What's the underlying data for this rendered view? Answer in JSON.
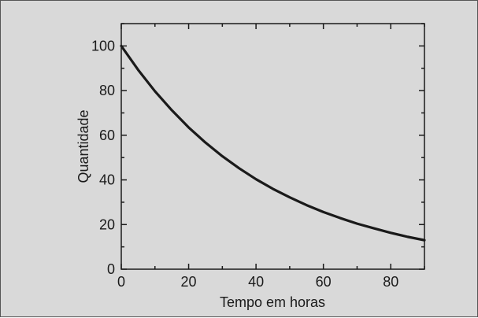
{
  "chart_data": {
    "type": "line",
    "title": "",
    "xlabel": "Tempo em horas",
    "ylabel": "Quantidade",
    "xlim": [
      0,
      90
    ],
    "ylim": [
      0,
      110
    ],
    "x_ticks": [
      0,
      20,
      40,
      60,
      80
    ],
    "y_ticks": [
      0,
      20,
      40,
      60,
      80,
      100
    ],
    "x_minor_step": 10,
    "y_minor_step": 10,
    "grid": false,
    "series": [
      {
        "x": [
          0,
          5,
          10,
          15,
          20,
          25,
          30,
          35,
          40,
          45,
          50,
          55,
          60,
          65,
          70,
          75,
          80,
          85,
          90
        ],
        "y": [
          100,
          89.3,
          79.7,
          71.2,
          63.5,
          56.7,
          50.6,
          45.2,
          40.3,
          36.0,
          32.2,
          28.7,
          25.6,
          22.9,
          20.4,
          18.3,
          16.3,
          14.5,
          13.0
        ],
        "color": "#1a1a1a"
      }
    ]
  }
}
